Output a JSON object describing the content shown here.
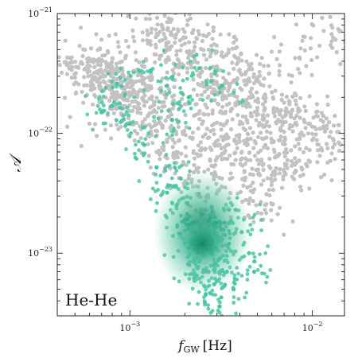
{
  "chart_data": {
    "type": "scatter",
    "title": "",
    "annotation": "He-He",
    "xlabel": "f",
    "xlabel_sub": "GW",
    "xlabel_unit": "[Hz]",
    "ylabel": "𝒜",
    "x_scale": "log",
    "y_scale": "log",
    "xlim": [
      0.0004,
      0.015
    ],
    "ylim": [
      3e-24,
      1e-21
    ],
    "grid": false,
    "x_ticks": [
      {
        "value": 0.001,
        "base": "10",
        "exp": "−3"
      },
      {
        "value": 0.01,
        "base": "10",
        "exp": "−2"
      }
    ],
    "y_ticks": [
      {
        "value": 1e-23,
        "base": "10",
        "exp": "−23"
      },
      {
        "value": 1e-22,
        "base": "10",
        "exp": "−22"
      },
      {
        "value": 1e-21,
        "base": "10",
        "exp": "−21"
      }
    ],
    "series": [
      {
        "color": "#c2c2c2",
        "description_points": [
          [
            0.00048,
            4.3e-22
          ],
          [
            0.00055,
            3.8e-22
          ],
          [
            0.0006,
            3.3e-22
          ],
          [
            0.00065,
            2.9e-22
          ],
          [
            0.0007,
            4e-22
          ],
          [
            0.00075,
            2.5e-22
          ],
          [
            0.0008,
            3.6e-22
          ],
          [
            0.00085,
            2.2e-22
          ],
          [
            0.0009,
            3e-22
          ],
          [
            0.00095,
            1.9e-22
          ],
          [
            0.001,
            2.7e-22
          ],
          [
            0.0011,
            2.1e-22
          ],
          [
            0.0012,
            1.7e-22
          ],
          [
            0.0013,
            5.5e-22
          ],
          [
            0.0014,
            1.5e-22
          ],
          [
            0.0015,
            6e-22
          ],
          [
            0.0016,
            8.5e-22
          ],
          [
            0.0018,
            4.5e-22
          ],
          [
            0.002,
            5.6e-22
          ],
          [
            0.0022,
            3.9e-22
          ],
          [
            0.0025,
            5.9e-22
          ],
          [
            0.0028,
            3e-22
          ],
          [
            0.003,
            4.8e-22
          ],
          [
            0.0035,
            2.4e-22
          ],
          [
            0.004,
            3.4e-22
          ],
          [
            0.0045,
            2e-22
          ],
          [
            0.005,
            2.9e-22
          ],
          [
            0.0055,
            1.6e-22
          ],
          [
            0.006,
            2.2e-22
          ],
          [
            0.0065,
            1.3e-22
          ],
          [
            0.007,
            1.8e-22
          ],
          [
            0.0075,
            1.1e-22
          ],
          [
            0.0085,
            4.3e-22
          ],
          [
            0.009,
            1.3e-22
          ],
          [
            0.01,
            8.8e-23
          ],
          [
            0.011,
            6.5e-23
          ],
          [
            0.012,
            1.1e-22
          ],
          [
            0.013,
            6.3e-22
          ],
          [
            0.0026,
            2.3e-23
          ],
          [
            0.0032,
            4.2e-23
          ],
          [
            0.0038,
            6e-23
          ],
          [
            0.0046,
            3.3e-23
          ],
          [
            0.0055,
            2.3e-23
          ],
          [
            0.0022,
            9e-23
          ],
          [
            0.0018,
            7e-23
          ],
          [
            0.0014,
            1.2e-22
          ],
          [
            0.0011,
            1.6e-22
          ],
          [
            0.0009,
            2.4e-22
          ],
          [
            0.0029,
            1.2e-22
          ],
          [
            0.0034,
            8e-23
          ],
          [
            0.0042,
            1.1e-22
          ],
          [
            0.005,
            6e-23
          ],
          [
            0.006,
            4.5e-23
          ],
          [
            0.0024,
            4e-23
          ],
          [
            0.002,
            5.5e-23
          ],
          [
            0.0016,
            8.5e-23
          ],
          [
            0.0036,
            1.6e-22
          ],
          [
            0.0044,
            9e-23
          ],
          [
            0.0062,
            7e-23
          ],
          [
            0.0072,
            5.5e-23
          ],
          [
            0.0028,
            1.9e-22
          ],
          [
            0.0033,
            2.6e-22
          ],
          [
            0.0012,
            2.6e-22
          ],
          [
            0.0008,
            1.6e-22
          ]
        ]
      },
      {
        "color": "#48c4a3",
        "density_peak": [
          0.0025,
          1.2e-23
        ],
        "description_points": [
          [
            0.0025,
            1.2e-23
          ],
          [
            0.0022,
            1.5e-23
          ],
          [
            0.0028,
            1e-23
          ],
          [
            0.002,
            1.9e-23
          ],
          [
            0.003,
            1.4e-23
          ],
          [
            0.0018,
            2.5e-23
          ],
          [
            0.0033,
            1.8e-23
          ],
          [
            0.0024,
            8.5e-24
          ],
          [
            0.0027,
            7e-24
          ],
          [
            0.0021,
            1.1e-23
          ],
          [
            0.0031,
            9e-24
          ],
          [
            0.0035,
            1.2e-23
          ],
          [
            0.0016,
            3.2e-23
          ],
          [
            0.0038,
            2.3e-23
          ],
          [
            0.0029,
            5.5e-24
          ],
          [
            0.0023,
            6.5e-24
          ],
          [
            0.0026,
            4.5e-24
          ],
          [
            0.0034,
            7e-24
          ],
          [
            0.0041,
            1.5e-23
          ],
          [
            0.0019,
            4.2e-23
          ],
          [
            0.0014,
            5.2e-23
          ],
          [
            0.0012,
            8e-23
          ],
          [
            0.001,
            1.2e-22
          ],
          [
            0.0008,
            1.7e-22
          ],
          [
            0.0045,
            1e-23
          ],
          [
            0.0048,
            7e-24
          ],
          [
            0.0037,
            5e-24
          ],
          [
            0.0031,
            3.6e-24
          ],
          [
            0.0017,
            1.3e-22
          ],
          [
            0.0021,
            2e-22
          ],
          [
            0.0024,
            3.5e-22
          ],
          [
            0.0016,
            2.5e-22
          ],
          [
            0.0013,
            3.3e-22
          ],
          [
            0.00085,
            2.6e-22
          ],
          [
            0.0007,
            1.5e-22
          ],
          [
            0.0032,
            2.5e-22
          ]
        ]
      }
    ]
  }
}
